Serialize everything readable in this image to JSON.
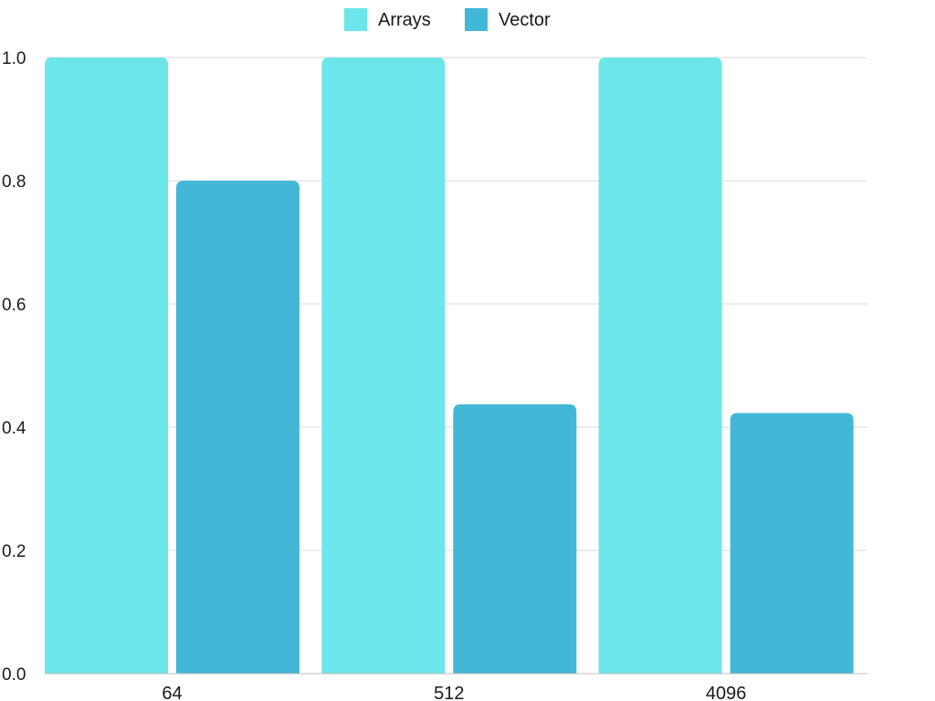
{
  "chart_data": {
    "type": "bar",
    "categories": [
      "64",
      "512",
      "4096"
    ],
    "series": [
      {
        "name": "Arrays",
        "values": [
          1.0,
          1.0,
          1.0
        ],
        "color": "#6ce6ea"
      },
      {
        "name": "Vector",
        "values": [
          0.8,
          0.437,
          0.423
        ],
        "color": "#43b7d6"
      }
    ],
    "ylim": [
      0,
      1.0
    ],
    "yticks": [
      "0.0",
      "0.2",
      "0.4",
      "0.6",
      "0.8",
      "1.0"
    ],
    "grid": true,
    "legend": "top-center",
    "title": "",
    "xlabel": "",
    "ylabel": ""
  }
}
